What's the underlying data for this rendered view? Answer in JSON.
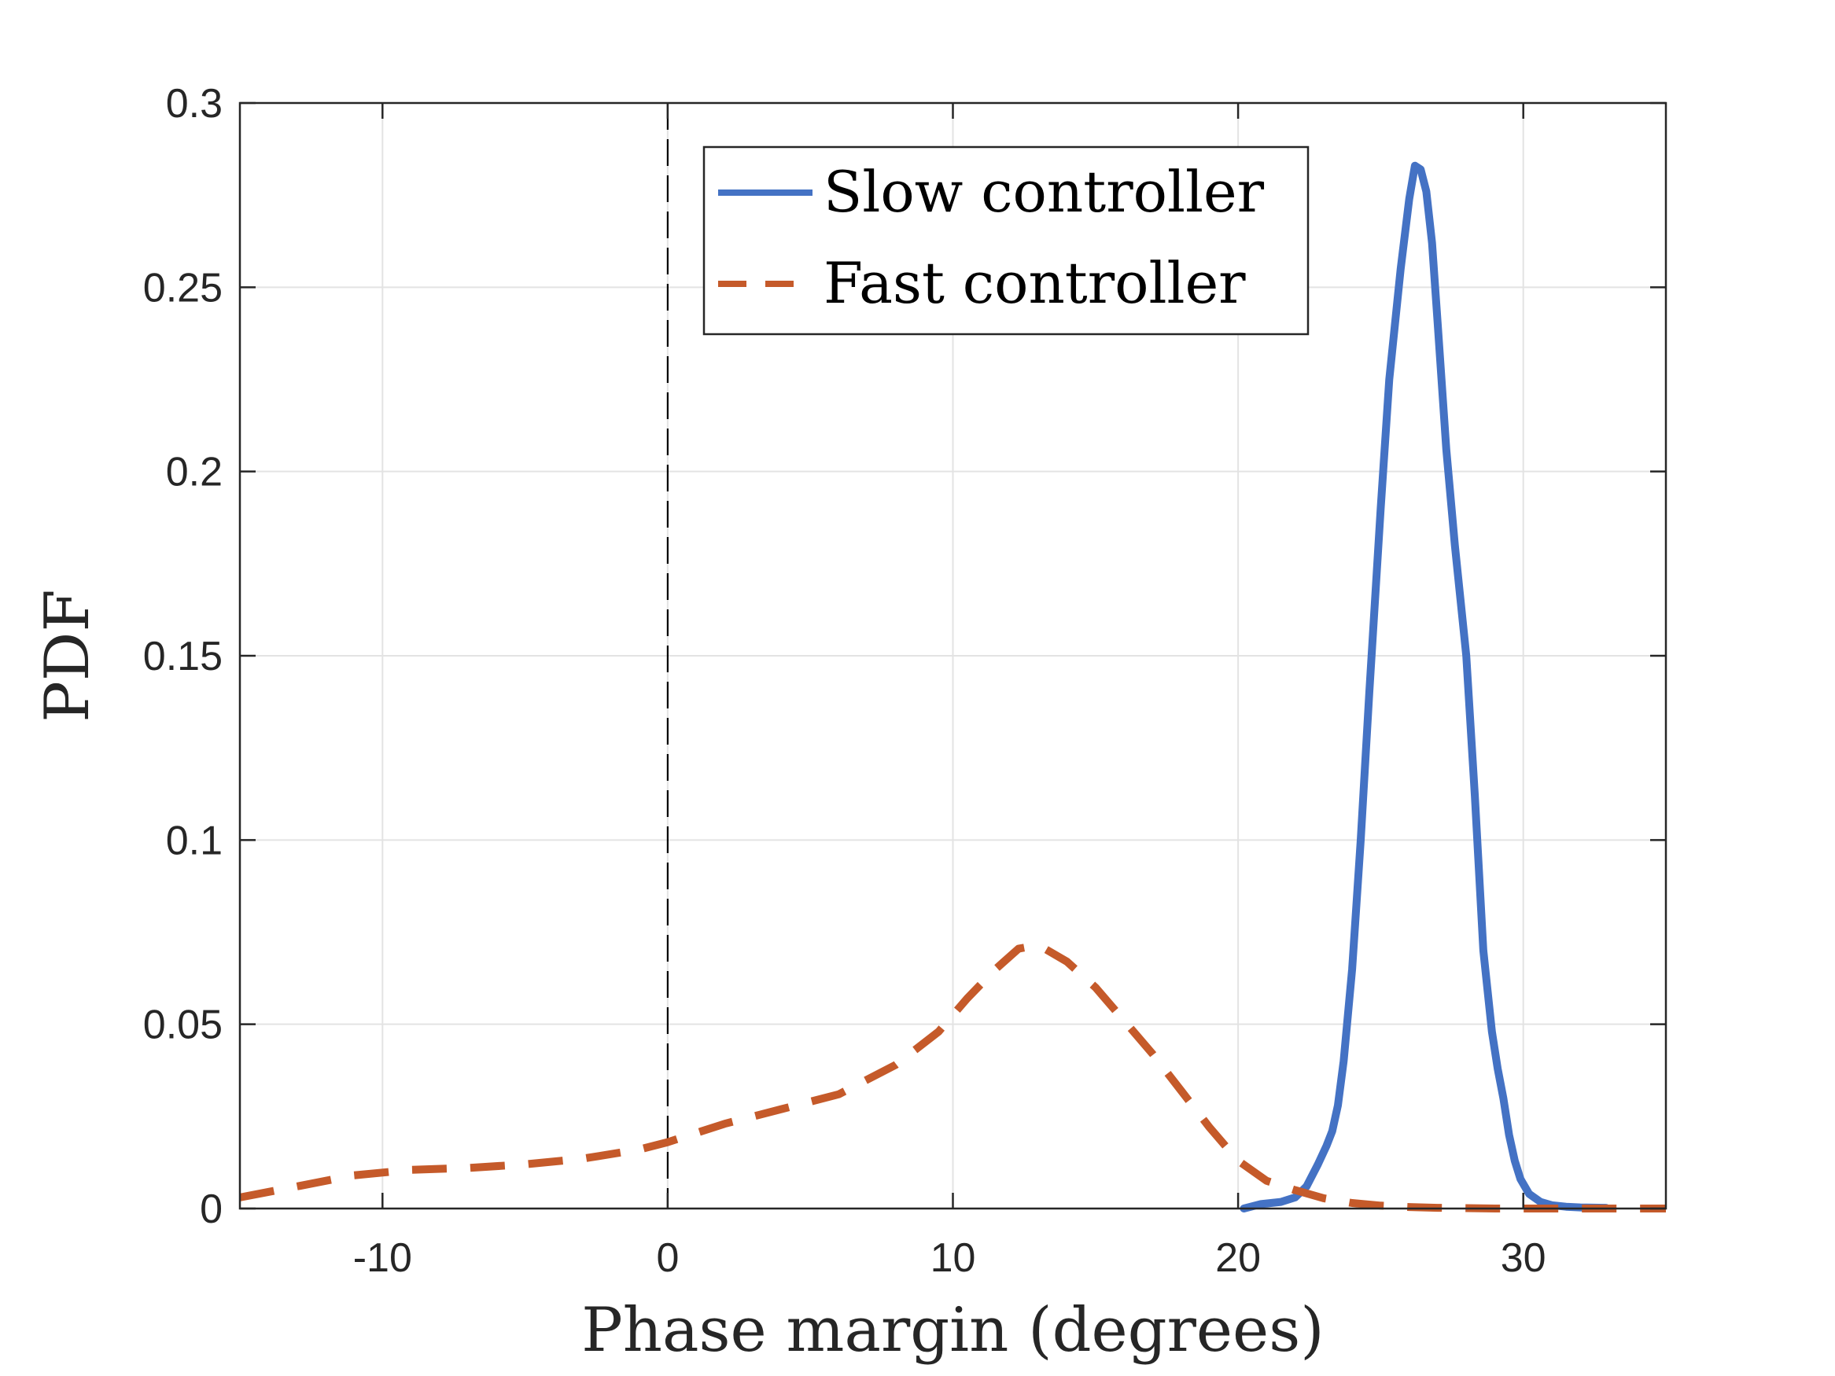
{
  "chart_data": {
    "type": "line",
    "xlabel": "Phase margin (degrees)",
    "ylabel": "PDF",
    "xlim": [
      -15,
      35
    ],
    "ylim": [
      0,
      0.3
    ],
    "x_ticks": [
      -10,
      0,
      10,
      20,
      30
    ],
    "x_tick_labels": [
      "-10",
      "0",
      "10",
      "20",
      "30"
    ],
    "y_ticks": [
      0,
      0.05,
      0.1,
      0.15,
      0.2,
      0.25,
      0.3
    ],
    "y_tick_labels": [
      "0",
      "0.05",
      "0.1",
      "0.15",
      "0.2",
      "0.25",
      "0.3"
    ],
    "grid": true,
    "legend_position": "top-center",
    "reference_line": {
      "x": 0,
      "style": "dashed",
      "color": "#000000"
    },
    "series": [
      {
        "name": "Slow controller",
        "color": "#4472C4",
        "style": "solid",
        "x": [
          20.2,
          20.8,
          21.5,
          22.0,
          22.4,
          22.8,
          23.1,
          23.3,
          23.5,
          23.7,
          24.0,
          24.3,
          24.6,
          25.0,
          25.3,
          25.7,
          26.0,
          26.2,
          26.4,
          26.6,
          26.8,
          27.0,
          27.3,
          27.6,
          28.0,
          28.3,
          28.6,
          28.9,
          29.1,
          29.3,
          29.5,
          29.7,
          29.9,
          30.2,
          30.6,
          31.0,
          31.5,
          32.0,
          32.9
        ],
        "y": [
          0.0,
          0.0012,
          0.0018,
          0.003,
          0.006,
          0.012,
          0.017,
          0.021,
          0.028,
          0.04,
          0.065,
          0.1,
          0.14,
          0.19,
          0.225,
          0.255,
          0.274,
          0.283,
          0.282,
          0.276,
          0.262,
          0.24,
          0.206,
          0.18,
          0.15,
          0.112,
          0.07,
          0.048,
          0.038,
          0.03,
          0.02,
          0.013,
          0.008,
          0.004,
          0.0018,
          0.0009,
          0.0005,
          0.0003,
          0.0002
        ]
      },
      {
        "name": "Fast controller",
        "color": "#C55A2A",
        "style": "dashed",
        "x": [
          -15,
          -13,
          -11,
          -9,
          -7,
          -5,
          -3,
          -1,
          0,
          2,
          4,
          6,
          8,
          9.5,
          10.5,
          11.5,
          12.3,
          13,
          14,
          15,
          16,
          17,
          18,
          19,
          20,
          21,
          22,
          23,
          24,
          25,
          26,
          27,
          28,
          29,
          30,
          31,
          32,
          33,
          34,
          35
        ],
        "y": [
          0.003,
          0.006,
          0.009,
          0.0105,
          0.011,
          0.012,
          0.0135,
          0.016,
          0.018,
          0.023,
          0.027,
          0.031,
          0.039,
          0.048,
          0.057,
          0.065,
          0.0705,
          0.0715,
          0.067,
          0.06,
          0.051,
          0.042,
          0.032,
          0.022,
          0.013,
          0.0075,
          0.005,
          0.0028,
          0.0015,
          0.0008,
          0.0004,
          0.0002,
          0.0001,
          0.0,
          0.0,
          0.0,
          0.0,
          0.0,
          0.0,
          0.0
        ]
      }
    ]
  }
}
